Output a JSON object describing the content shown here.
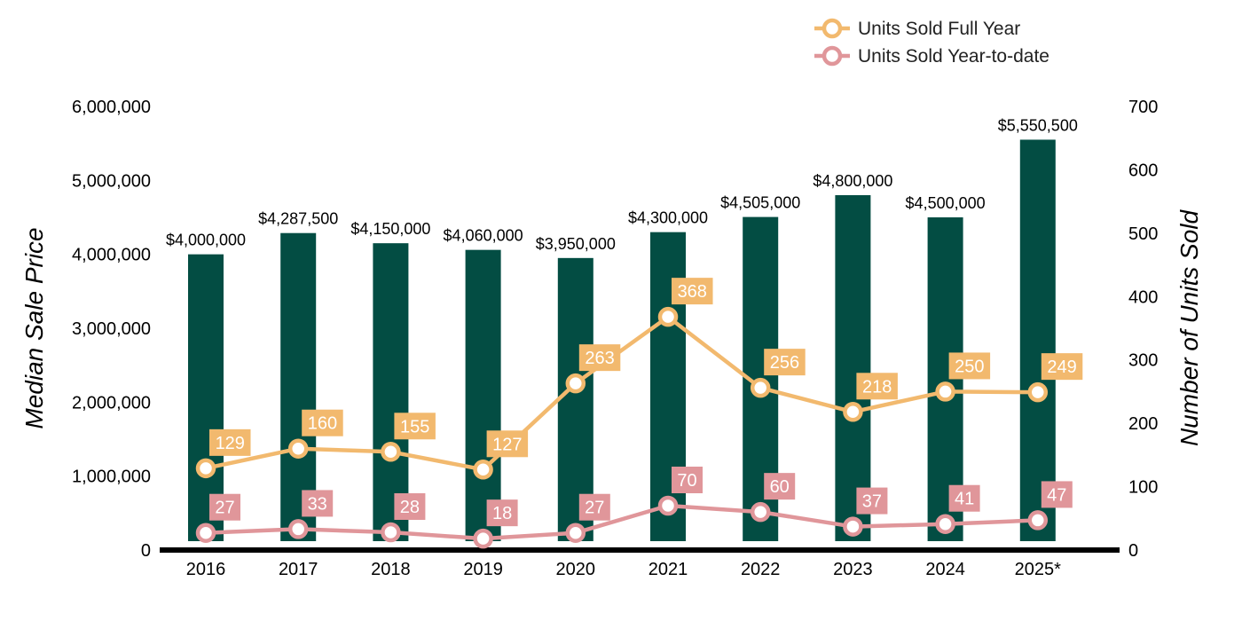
{
  "chart_data": {
    "type": "bar",
    "categories": [
      "2016",
      "2017",
      "2018",
      "2019",
      "2020",
      "2021",
      "2022",
      "2023",
      "2024",
      "2025*"
    ],
    "bars": {
      "values": [
        4000000,
        4287500,
        4150000,
        4060000,
        3950000,
        4300000,
        4505000,
        4800000,
        4500000,
        5550500
      ],
      "labels": [
        "$4,000,000",
        "$4,287,500",
        "$4,150,000",
        "$4,060,000",
        "$3,950,000",
        "$4,300,000",
        "$4,505,000",
        "$4,800,000",
        "$4,500,000",
        "$5,550,500"
      ],
      "color": "#034d43"
    },
    "series": [
      {
        "name": "Units Sold Full Year",
        "values": [
          129,
          160,
          155,
          127,
          263,
          368,
          256,
          218,
          250,
          249
        ],
        "color": "#f2b96e",
        "axis": "right"
      },
      {
        "name": "Units Sold Year-to-date",
        "values": [
          27,
          33,
          28,
          18,
          27,
          70,
          60,
          37,
          41,
          47
        ],
        "color": "#e0969a",
        "axis": "right"
      }
    ],
    "y_left": {
      "label": "Median Sale Price",
      "ylim": [
        0,
        6000000
      ],
      "ticks": [
        "0",
        "1,000,000",
        "2,000,000",
        "3,000,000",
        "4,000,000",
        "5,000,000",
        "6,000,000"
      ]
    },
    "y_right": {
      "label": "Number of Units Sold",
      "ylim": [
        0,
        700
      ],
      "ticks": [
        "0",
        "100",
        "200",
        "300",
        "400",
        "500",
        "600",
        "700"
      ]
    },
    "grid": false,
    "legend": "top-right"
  }
}
